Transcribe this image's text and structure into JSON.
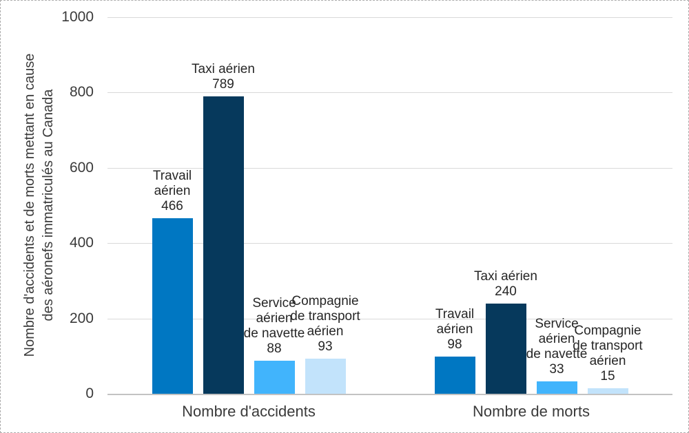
{
  "chart_data": {
    "type": "bar",
    "title": "",
    "ylabel": "Nombre d'accidents et de morts mettant en cause des aéronefs immatriculés au Canada",
    "ylabel_lines": [
      "Nombre d'accidents et de morts mettant en cause",
      "des aéronefs immatriculés au Canada"
    ],
    "xlabel": "",
    "categories": [
      "Nombre d'accidents",
      "Nombre de morts"
    ],
    "yticks": [
      0,
      200,
      400,
      600,
      800,
      1000
    ],
    "ylim": [
      0,
      1000
    ],
    "grid": true,
    "legend": "none",
    "series": [
      {
        "name": "Travail aérien",
        "name_lines": [
          "Travail",
          "aérien"
        ],
        "color": "#0077C2",
        "values": [
          466,
          98
        ]
      },
      {
        "name": "Taxi aérien",
        "name_lines": [
          "Taxi aérien"
        ],
        "color": "#06395C",
        "values": [
          789,
          240
        ]
      },
      {
        "name": "Service aérien de navette",
        "name_lines": [
          "Service",
          "aérien",
          "de navette"
        ],
        "color": "#41B4FC",
        "values": [
          88,
          33
        ]
      },
      {
        "name": "Compagnie de transport aérien",
        "name_lines": [
          "Compagnie",
          "de transport",
          "aérien"
        ],
        "color": "#C2E3FB",
        "values": [
          93,
          15
        ]
      }
    ],
    "colors": {
      "gridline": "#D9D9D9",
      "axis_line": "#C2C2C2",
      "text": "#3A3A3A"
    }
  }
}
